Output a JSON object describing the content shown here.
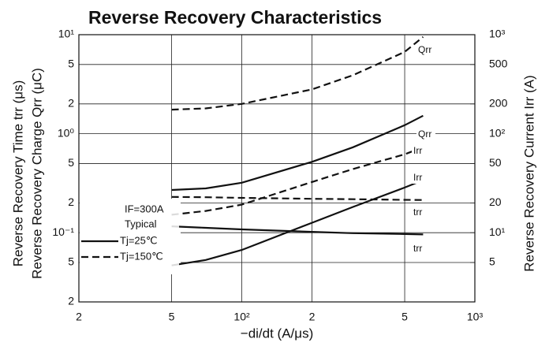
{
  "chart_data": {
    "type": "line",
    "title": "Reverse Recovery Characteristics",
    "x_label": "−di/dt (A/μs)",
    "y_label": [
      "Reverse Recovery Time trr (μs)",
      "Reverse Recovery Charge Qrr (μC)"
    ],
    "y2_label": "Reverse Recovery Current Irr (A)",
    "log_x": true,
    "log_y": true,
    "grid": true,
    "xlim": [
      20,
      1000
    ],
    "xticks": [
      {
        "value": 20,
        "label": "2"
      },
      {
        "value": 50,
        "label": "5"
      },
      {
        "value": 100,
        "label": "10²"
      },
      {
        "value": 200,
        "label": "2"
      },
      {
        "value": 500,
        "label": "5"
      },
      {
        "value": 1000,
        "label": "10³"
      }
    ],
    "ylim": [
      0.02,
      10
    ],
    "yticks": [
      {
        "value": 0.02,
        "label": "2"
      },
      {
        "value": 0.05,
        "label": "5"
      },
      {
        "value": 0.1,
        "label": "10⁻¹"
      },
      {
        "value": 0.2,
        "label": "2"
      },
      {
        "value": 0.5,
        "label": "5"
      },
      {
        "value": 1,
        "label": "10⁰"
      },
      2,
      5,
      {
        "value": 10,
        "label": "10¹"
      }
    ],
    "y2lim": [
      2,
      1000
    ],
    "y2ticks": [
      5,
      {
        "value": 10,
        "label": "10¹"
      },
      20,
      50,
      {
        "value": 100,
        "label": "10²"
      },
      200,
      500,
      {
        "value": 1000,
        "label": "10³"
      }
    ],
    "x": [
      50,
      70,
      100,
      200,
      300,
      500,
      600
    ],
    "series": [
      {
        "name": "Qrr",
        "color": "#111111",
        "dash": true,
        "values": [
          1.75,
          1.8,
          2.0,
          2.8,
          3.9,
          6.7,
          9.5
        ]
      },
      {
        "name": "Qrr",
        "color": "#111111",
        "dash": false,
        "values": [
          0.27,
          0.28,
          0.32,
          0.52,
          0.73,
          1.22,
          1.52
        ]
      },
      {
        "name": "Irr",
        "color": "#111111",
        "dash": true,
        "axis": "y2",
        "values": [
          15.2,
          16.6,
          19.2,
          32.5,
          44,
          62,
          73
        ]
      },
      {
        "name": "Irr",
        "color": "#111111",
        "dash": false,
        "axis": "y2",
        "values": [
          4.67,
          5.3,
          6.7,
          12.6,
          18.2,
          28.6,
          34
        ]
      },
      {
        "name": "trr",
        "color": "#111111",
        "dash": true,
        "values": [
          0.23,
          0.228,
          0.225,
          0.22,
          0.218,
          0.215,
          0.214
        ]
      },
      {
        "name": "trr",
        "color": "#111111",
        "dash": false,
        "values": [
          0.116,
          0.112,
          0.108,
          0.102,
          0.099,
          0.097,
          0.096
        ]
      }
    ],
    "annotations": [
      "IF=300A",
      "Typical"
    ],
    "legend": [
      {
        "label": "Tj=25℃",
        "dash": false
      },
      {
        "label": "Tj=150℃",
        "dash": true
      }
    ]
  }
}
